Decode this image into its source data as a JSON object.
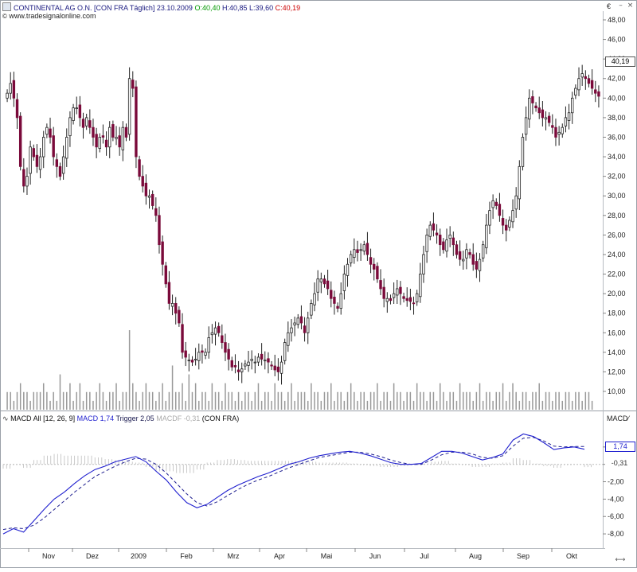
{
  "header": {
    "instrument": "CONTINENTAL AG O.N. [CON FRA  Täglich]",
    "date": "23.10.2009",
    "open": "O:40,40",
    "high": "H:40,85",
    "low": "L:39,60",
    "close": "C:40,19",
    "source": "www.tradesignalonline.com",
    "currency": "€"
  },
  "macd_header": {
    "label": "MACD All [12, 26, 9]",
    "macd": "MACD 1,74",
    "trigger": "Trigger 2,05",
    "macdf": "MACDF -0,31",
    "symbol": "(CON FRA)",
    "axis_title": "MACD"
  },
  "last_values": {
    "price": "40,19",
    "macd": "1,74",
    "macdf": "-0,31"
  },
  "colors": {
    "macd": "#1f1fcf",
    "trigger": "#1f1f8f",
    "open_green": "#009900",
    "close_red": "#cc0000",
    "bear_candle": "#7a0a3a",
    "bull_candle": "#1a1a6a"
  },
  "chart_data": [
    {
      "type": "candlestick",
      "title": "CONTINENTAL AG O.N.",
      "ylim": [
        10,
        48
      ],
      "grid": false,
      "y_ticks": [
        "48,00",
        "46,00",
        "44,00",
        "42,00",
        "40,00",
        "38,00",
        "36,00",
        "34,00",
        "32,00",
        "30,00",
        "28,00",
        "26,00",
        "24,00",
        "22,00",
        "20,00",
        "18,00",
        "16,00",
        "14,00",
        "12,00",
        "10,00"
      ],
      "x_ticks": [
        "Nov",
        "Dez",
        "2009",
        "Feb",
        "Mrz",
        "Apr",
        "Mai",
        "Jun",
        "Jul",
        "Aug",
        "Sep",
        "Okt"
      ],
      "close": [
        40.5,
        41.5,
        40,
        38,
        33,
        31,
        32,
        35,
        34,
        33,
        34,
        36,
        37,
        36,
        34,
        33,
        32,
        34,
        36,
        38,
        39,
        39,
        38,
        37,
        38,
        37,
        36,
        35,
        36,
        36,
        35,
        37,
        36,
        36,
        35,
        37,
        36,
        42,
        41,
        34,
        32,
        31,
        30,
        30,
        29,
        28,
        25,
        23,
        21,
        19,
        19,
        18,
        17,
        14,
        13.5,
        13.2,
        13,
        13.3,
        14,
        14,
        14,
        15.5,
        16,
        16.5,
        16,
        15,
        14,
        13.3,
        12.5,
        12.5,
        12,
        12.3,
        12.8,
        13,
        13.3,
        13,
        13.5,
        13.3,
        13.2,
        13,
        12.6,
        12.2,
        12,
        13,
        15,
        16,
        16.5,
        17,
        17.5,
        17,
        16,
        17.5,
        19,
        20,
        21.5,
        21.5,
        21,
        20.5,
        19.5,
        19,
        18.5,
        20,
        22,
        23,
        24,
        24.5,
        24.2,
        24.5,
        25,
        24,
        23,
        22.5,
        21.5,
        20.5,
        19.5,
        19.5,
        19.3,
        20,
        20.5,
        20,
        19.5,
        19.3,
        19.2,
        19,
        20,
        22,
        24,
        26,
        27,
        26.5,
        26,
        25,
        24.5,
        25.5,
        26,
        25,
        24,
        23.5,
        23.5,
        24.5,
        24,
        23,
        22.5,
        23.5,
        25,
        27,
        28.5,
        29.5,
        29,
        28,
        27,
        26.5,
        27.5,
        28.5,
        30,
        33,
        36,
        38,
        40,
        39.5,
        39,
        38.5,
        38,
        38,
        37.5,
        37,
        36,
        36.5,
        37,
        38,
        38.5,
        40,
        41,
        42,
        42.5,
        42,
        41.5,
        41,
        40.5,
        40.19
      ]
    },
    {
      "type": "bar",
      "title": "Volume",
      "values": [
        2,
        2,
        1,
        2,
        3,
        2,
        2,
        1,
        2,
        2,
        2,
        3,
        2,
        1,
        2,
        1,
        4,
        2,
        2,
        3,
        1,
        2,
        3,
        1,
        2,
        2,
        1,
        2,
        3,
        2,
        1,
        2,
        2,
        3,
        1,
        2,
        2,
        9,
        3,
        2,
        1,
        2,
        3,
        2,
        2,
        1,
        2,
        3,
        1,
        2,
        5,
        2,
        2,
        3,
        1,
        4,
        2,
        3,
        1,
        2,
        2,
        1,
        3,
        2,
        2,
        1,
        3,
        2,
        2,
        1,
        2,
        1,
        2,
        2,
        1,
        2,
        3,
        1,
        2,
        2,
        1,
        3,
        2,
        2,
        1,
        2,
        3,
        1,
        2,
        2,
        2,
        1,
        3,
        2,
        2,
        1,
        2,
        2,
        3,
        1,
        2,
        2,
        1,
        2,
        3,
        2,
        1,
        2,
        2,
        1,
        2,
        2,
        3,
        1,
        2,
        2,
        1,
        3,
        2,
        2,
        1,
        2,
        2,
        1,
        3,
        2,
        2,
        1,
        2,
        2,
        1,
        3,
        2,
        1,
        2,
        2,
        1,
        3,
        2,
        2,
        2,
        1,
        2,
        3,
        1,
        2,
        2,
        1,
        2,
        2,
        3,
        1,
        2,
        3,
        2,
        1,
        2,
        2,
        1,
        2,
        2,
        3,
        1,
        2,
        2,
        1,
        2,
        2,
        1,
        2,
        2,
        1,
        2,
        2,
        1,
        2,
        2,
        1
      ]
    },
    {
      "type": "line",
      "title": "MACD All [12, 26, 9]",
      "ylim": [
        -9,
        4
      ],
      "y_ticks": [
        "2,00",
        "0,00",
        "-2,00",
        "-4,00",
        "-6,00",
        "-8,00"
      ],
      "series": [
        {
          "name": "MACD",
          "values": [
            -8,
            -7.4,
            -7.8,
            -6.5,
            -5.2,
            -4,
            -3.2,
            -2.2,
            -1.3,
            -0.6,
            -0.2,
            0.3,
            0.6,
            0.9,
            0.3,
            -0.8,
            -1.8,
            -3.2,
            -4.4,
            -5,
            -4.6,
            -3.8,
            -3,
            -2.4,
            -1.9,
            -1.4,
            -1,
            -0.5,
            0,
            0.3,
            0.7,
            1,
            1.2,
            1.4,
            1.5,
            1.3,
            1,
            0.6,
            0.2,
            0,
            0,
            0.1,
            0.8,
            1.5,
            1.5,
            1.3,
            0.9,
            0.5,
            0.8,
            1.2,
            2.8,
            3.5,
            3.2,
            2.5,
            1.7,
            1.9,
            2.0,
            1.74
          ]
        },
        {
          "name": "Trigger",
          "values": [
            -7.5,
            -7.3,
            -7.4,
            -7,
            -6.2,
            -5.2,
            -4.2,
            -3.2,
            -2.3,
            -1.4,
            -0.8,
            -0.2,
            0.3,
            0.7,
            0.6,
            0,
            -1,
            -2.2,
            -3.4,
            -4.4,
            -4.8,
            -4.3,
            -3.6,
            -2.9,
            -2.3,
            -1.8,
            -1.4,
            -0.9,
            -0.4,
            0,
            0.4,
            0.8,
            1,
            1.2,
            1.4,
            1.4,
            1.2,
            0.9,
            0.5,
            0.2,
            0,
            0,
            0.5,
            1.1,
            1.4,
            1.4,
            1.2,
            0.8,
            0.7,
            1,
            2.1,
            3,
            3.1,
            2.7,
            2.1,
            2,
            2.05,
            2.05
          ]
        },
        {
          "name": "MACDF",
          "values": [
            -0.5,
            -0.1,
            -0.4,
            0.5,
            1,
            1.2,
            1,
            1,
            1,
            0.8,
            0.6,
            0.5,
            0.3,
            0.2,
            -0.3,
            -0.8,
            -0.8,
            -1,
            -1,
            -0.6,
            0.2,
            0.5,
            0.6,
            0.5,
            0.4,
            0.4,
            0.4,
            0.4,
            0.4,
            0.3,
            0.3,
            0.2,
            0.2,
            0.2,
            0.1,
            -0.1,
            -0.2,
            -0.3,
            -0.3,
            -0.2,
            0,
            0.1,
            0.3,
            0.4,
            0.1,
            -0.1,
            -0.3,
            -0.3,
            0.1,
            0.2,
            0.7,
            0.5,
            0.1,
            -0.2,
            -0.4,
            -0.1,
            -0.05,
            -0.31
          ]
        }
      ]
    }
  ]
}
